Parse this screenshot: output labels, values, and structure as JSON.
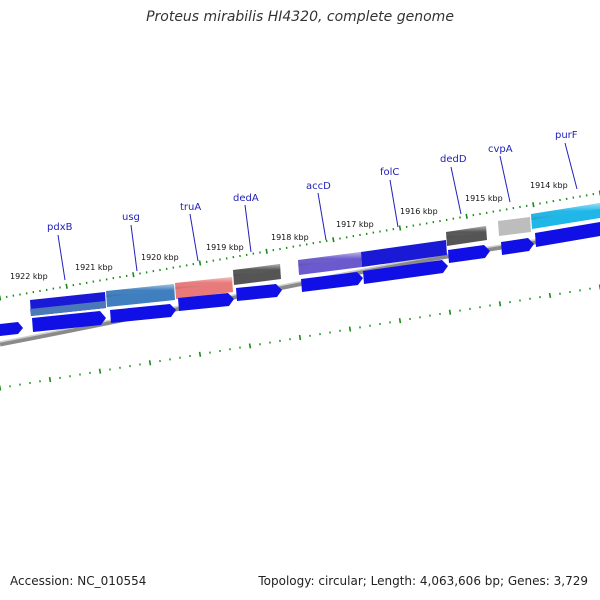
{
  "title": "Proteus mirabilis HI4320, complete genome",
  "footer": {
    "accession": "Accession: NC_010554",
    "summary": "Topology: circular; Length: 4,063,606 bp; Genes: 3,729"
  },
  "kbp_labels": [
    "1922 kbp",
    "1921 kbp",
    "1920 kbp",
    "1919 kbp",
    "1918 kbp",
    "1917 kbp",
    "1916 kbp",
    "1915 kbp",
    "1914 kbp"
  ],
  "genes": [
    {
      "name": "pdxB",
      "color": "#4a6fb0"
    },
    {
      "name": "usg",
      "color": "#3f7fbf"
    },
    {
      "name": "truA",
      "color": "#e87a7a"
    },
    {
      "name": "dedA",
      "color": "#5c5c5c"
    },
    {
      "name": "accD",
      "color": "#6a5acd"
    },
    {
      "name": "folC",
      "color": "#1a1ad6"
    },
    {
      "name": "dedD",
      "color": "#5c5c5c"
    },
    {
      "name": "cvpA",
      "color": "#bdbdbd"
    },
    {
      "name": "purF",
      "color": "#1fb7e8"
    }
  ],
  "colors": {
    "cds_blue": "#1010e6",
    "tick_green": "#1a8a1a",
    "backbone_gray": "#8a8a8a",
    "label_blue": "#2222bb"
  }
}
